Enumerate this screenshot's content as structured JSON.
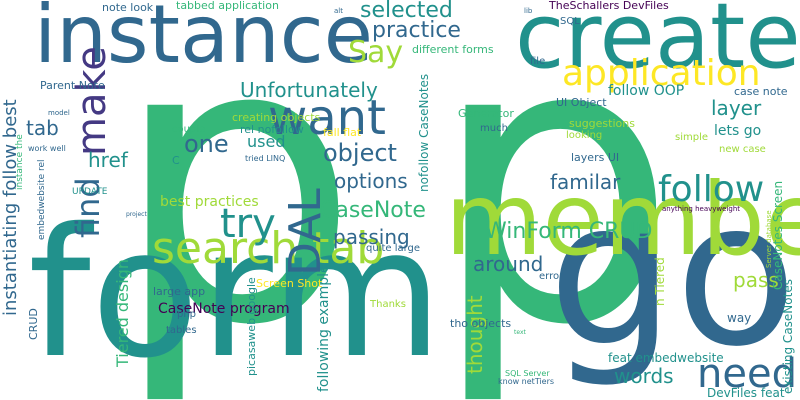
{
  "palette": {
    "navy": "#31688e",
    "teal": "#21918c",
    "green": "#35b779",
    "lime": "#a0da39",
    "yellow": "#fde725",
    "purple": "#443983",
    "dark": "#440154"
  },
  "words": [
    {
      "text": "p",
      "color": "green"
    },
    {
      "text": "p",
      "color": "green"
    },
    {
      "text": "form",
      "color": "teal"
    },
    {
      "text": "go",
      "color": "navy"
    },
    {
      "text": "member",
      "color": "lime"
    },
    {
      "text": "create",
      "color": "teal"
    },
    {
      "text": "instance",
      "color": "navy"
    },
    {
      "text": "search tab",
      "color": "lime"
    },
    {
      "text": "want",
      "color": "navy"
    },
    {
      "text": "follow",
      "color": "teal"
    },
    {
      "text": "application",
      "color": "yellow"
    },
    {
      "text": "try",
      "color": "teal"
    },
    {
      "text": "need",
      "color": "navy"
    },
    {
      "text": "DAL",
      "color": "navy"
    },
    {
      "text": "make",
      "color": "purple"
    },
    {
      "text": "find",
      "color": "navy"
    },
    {
      "text": "Say",
      "color": "lime"
    },
    {
      "text": "WinForm CRUD",
      "color": "green"
    },
    {
      "text": "practice",
      "color": "navy"
    },
    {
      "text": "Unfortunately",
      "color": "teal"
    },
    {
      "text": "layer",
      "color": "teal"
    },
    {
      "text": "CaseNote",
      "color": "green"
    },
    {
      "text": "selected",
      "color": "teal"
    },
    {
      "text": "object",
      "color": "navy"
    },
    {
      "text": "one",
      "color": "navy"
    },
    {
      "text": "tab",
      "color": "navy"
    },
    {
      "text": "href",
      "color": "teal"
    },
    {
      "text": "options",
      "color": "navy"
    },
    {
      "text": "passing",
      "color": "navy"
    },
    {
      "text": "familar",
      "color": "navy"
    },
    {
      "text": "words",
      "color": "teal"
    },
    {
      "text": "around",
      "color": "navy"
    },
    {
      "text": "pass",
      "color": "lime"
    },
    {
      "text": "thought",
      "color": "lime"
    },
    {
      "text": "used",
      "color": "teal"
    },
    {
      "text": "instantiating follow best",
      "color": "navy"
    },
    {
      "text": "best practices",
      "color": "lime"
    },
    {
      "text": "CaseNote program",
      "color": "dark"
    },
    {
      "text": "follow OOP",
      "color": "teal"
    },
    {
      "text": "lets go",
      "color": "teal"
    },
    {
      "text": "Tiered design",
      "color": "green"
    },
    {
      "text": "following example",
      "color": "teal"
    },
    {
      "text": "nofollow CaseNotes",
      "color": "teal"
    },
    {
      "text": "DevFiles feat",
      "color": "teal"
    },
    {
      "text": "feat embedwebsite",
      "color": "teal"
    },
    {
      "text": "CaseNotes Screen",
      "color": "green"
    },
    {
      "text": "existing CaseNotes",
      "color": "teal"
    },
    {
      "text": "n Tiered",
      "color": "lime"
    },
    {
      "text": "way",
      "color": "navy"
    },
    {
      "text": "TheSchallers DevFiles",
      "color": "dark"
    },
    {
      "text": "tabbed application",
      "color": "green"
    },
    {
      "text": "note look",
      "color": "navy"
    },
    {
      "text": "different forms",
      "color": "green"
    },
    {
      "text": "Parent Note",
      "color": "navy"
    },
    {
      "text": "creating objects",
      "color": "lime"
    },
    {
      "text": "rel nofollow",
      "color": "teal"
    },
    {
      "text": "UI Object",
      "color": "navy"
    },
    {
      "text": "case note",
      "color": "navy"
    },
    {
      "text": "suggestions",
      "color": "lime"
    },
    {
      "text": "looking",
      "color": "lime"
    },
    {
      "text": "simple",
      "color": "lime"
    },
    {
      "text": "new case",
      "color": "lime"
    },
    {
      "text": "layers UI",
      "color": "navy"
    },
    {
      "text": "Generator",
      "color": "green"
    },
    {
      "text": "much",
      "color": "navy"
    },
    {
      "text": "file",
      "color": "navy"
    },
    {
      "text": "SQL",
      "color": "navy"
    },
    {
      "text": "fall flat",
      "color": "yellow"
    },
    {
      "text": "couple",
      "color": "green"
    },
    {
      "text": "C",
      "color": "teal"
    },
    {
      "text": "tried LINQ",
      "color": "navy"
    },
    {
      "text": "quite large",
      "color": "navy"
    },
    {
      "text": "large app",
      "color": "navy"
    },
    {
      "text": "Screen Shot",
      "color": "yellow"
    },
    {
      "text": "Thanks",
      "color": "lime"
    },
    {
      "text": "tho objects",
      "color": "navy"
    },
    {
      "text": "error",
      "color": "navy"
    },
    {
      "text": "picasaweb google",
      "color": "teal"
    },
    {
      "text": "php",
      "color": "navy"
    },
    {
      "text": "tables",
      "color": "navy"
    },
    {
      "text": "SQL Server",
      "color": "green"
    },
    {
      "text": "know netTiers",
      "color": "navy"
    },
    {
      "text": "anything heavyweight",
      "color": "dark"
    },
    {
      "text": "UPDATE",
      "color": "teal"
    },
    {
      "text": "work well",
      "color": "navy"
    },
    {
      "text": "model",
      "color": "navy"
    },
    {
      "text": "embedwebsite rel",
      "color": "navy"
    },
    {
      "text": "CRUD",
      "color": "navy"
    },
    {
      "text": "instance the",
      "color": "green"
    },
    {
      "text": "alt",
      "color": "navy"
    },
    {
      "text": "lib",
      "color": "navy"
    },
    {
      "text": "project",
      "color": "navy"
    },
    {
      "text": "text",
      "color": "green"
    },
    {
      "text": "Server database",
      "color": "lime"
    }
  ]
}
